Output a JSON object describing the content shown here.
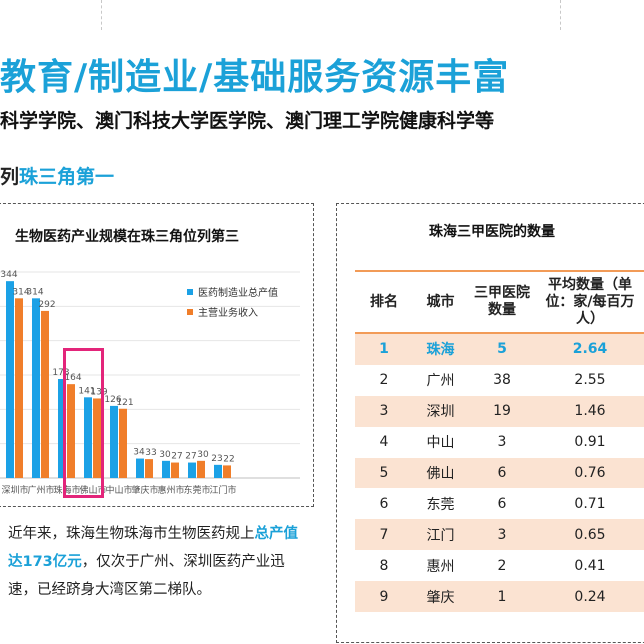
{
  "header": {
    "title": "教育/制造业/基础服务资源丰富",
    "subtitle": "科学学院、澳门科技大学医学院、澳门理工学院健康科学等",
    "rank_prefix": "列",
    "rank_highlight": "珠三角第一"
  },
  "left_panel": {
    "title": "生物医药产业规模在珠三角位列第三",
    "description_pre": "近年来，珠海生物珠海市生物医药规上",
    "description_hl": "总产值达173亿元",
    "description_post": "，仅次于广州、深圳医药产业迅速，已经跻身大湾区第二梯队。"
  },
  "chart_data": {
    "type": "bar",
    "title": "生物医药产业规模在珠三角位列第三",
    "categories": [
      "深圳市",
      "广州市",
      "珠海市",
      "佛山市",
      "中山市",
      "肇庆市",
      "惠州市",
      "东莞市",
      "江门市"
    ],
    "series": [
      {
        "name": "医药制造业总产值",
        "values": [
          344,
          314,
          173,
          141,
          126,
          34,
          30,
          27,
          23
        ],
        "color": "#1ba1e6"
      },
      {
        "name": "主营业务收入",
        "values": [
          314,
          292,
          164,
          139,
          121,
          33,
          27,
          30,
          22
        ],
        "color": "#f07e2a"
      }
    ],
    "ylim": [
      0,
      360
    ],
    "grid": true,
    "legend": "top-right"
  },
  "right_panel": {
    "title": "珠海三甲医院的数量",
    "columns": [
      "排名",
      "城市",
      "三甲医院数量",
      "平均数量（单位：家/每百万人）"
    ],
    "rows": [
      [
        "1",
        "珠海",
        "5",
        "2.64"
      ],
      [
        "2",
        "广州",
        "38",
        "2.55"
      ],
      [
        "3",
        "深圳",
        "19",
        "1.46"
      ],
      [
        "4",
        "中山",
        "3",
        "0.91"
      ],
      [
        "5",
        "佛山",
        "6",
        "0.76"
      ],
      [
        "6",
        "东莞",
        "6",
        "0.71"
      ],
      [
        "7",
        "江门",
        "3",
        "0.65"
      ],
      [
        "8",
        "惠州",
        "2",
        "0.41"
      ],
      [
        "9",
        "肇庆",
        "1",
        "0.24"
      ]
    ]
  },
  "colors": {
    "accent": "#1ba1d8",
    "table_stripe": "#fbe3d2",
    "table_rule": "#f29b57",
    "highlight_box": "#e3257a"
  }
}
